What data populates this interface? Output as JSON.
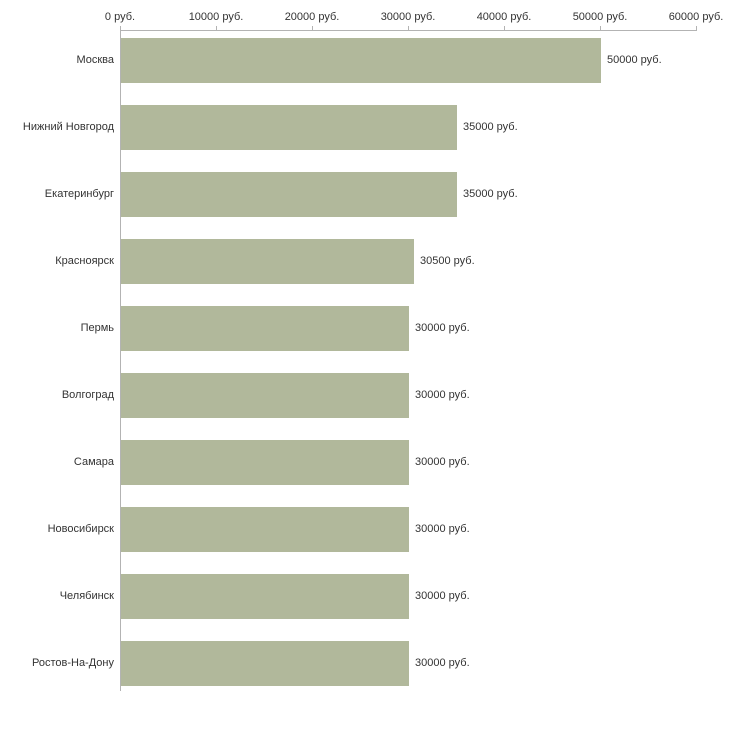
{
  "chart_data": {
    "type": "bar",
    "orientation": "horizontal",
    "title": "",
    "xlabel": "",
    "ylabel": "",
    "unit": "руб.",
    "categories": [
      "Москва",
      "Нижний Новгород",
      "Екатеринбург",
      "Красноярск",
      "Пермь",
      "Волгоград",
      "Самара",
      "Новосибирск",
      "Челябинск",
      "Ростов-На-Дону"
    ],
    "values": [
      50000,
      35000,
      35000,
      30500,
      30000,
      30000,
      30000,
      30000,
      30000,
      30000
    ],
    "value_labels": [
      "50000 руб.",
      "35000 руб.",
      "35000 руб.",
      "30500 руб.",
      "30000 руб.",
      "30000 руб.",
      "30000 руб.",
      "30000 руб.",
      "30000 руб.",
      "30000 руб."
    ],
    "x_tick_values": [
      0,
      10000,
      20000,
      30000,
      40000,
      50000,
      60000
    ],
    "x_tick_labels": [
      "0 руб.",
      "10000 руб.",
      "20000 руб.",
      "30000 руб.",
      "40000 руб.",
      "50000 руб.",
      "60000 руб."
    ],
    "xlim": [
      0,
      60000
    ],
    "grid": false,
    "legend": "none",
    "bar_color": "#b1b89b",
    "axis_color": "#b3b3b3",
    "text_color": "#333333"
  }
}
